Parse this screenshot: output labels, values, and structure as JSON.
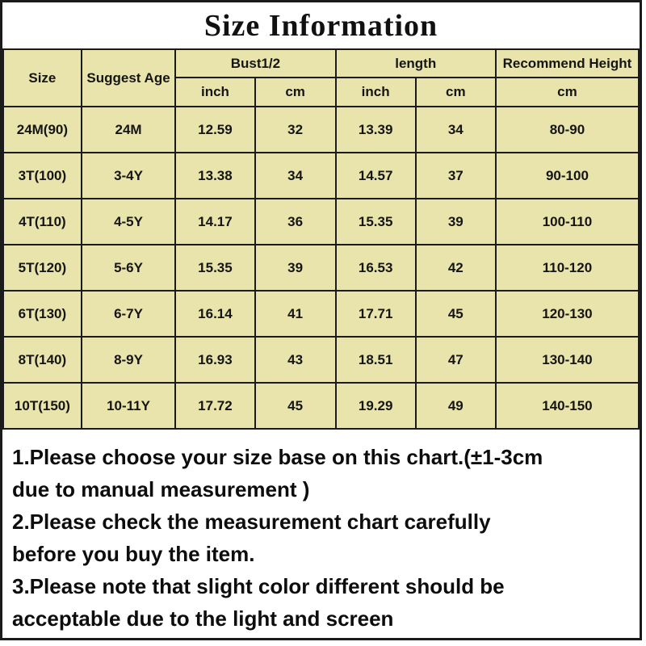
{
  "title": "Size Information",
  "colors": {
    "cell_bg": "#e9e4ab",
    "border": "#1b1b1b",
    "background": "#ffffff",
    "text": "#161616"
  },
  "table": {
    "columns": [
      {
        "label": "Size"
      },
      {
        "label": "Suggest Age"
      },
      {
        "label": "Bust1/2",
        "sub": [
          "inch",
          "cm"
        ]
      },
      {
        "label": "length",
        "sub": [
          "inch",
          "cm"
        ]
      },
      {
        "label": "Recommend Height",
        "sub": [
          "cm"
        ]
      }
    ],
    "rows": [
      {
        "size": "24M(90)",
        "age": "24M",
        "bust_inch": "12.59",
        "bust_cm": "32",
        "length_inch": "13.39",
        "length_cm": "34",
        "height_cm": "80-90"
      },
      {
        "size": "3T(100)",
        "age": "3-4Y",
        "bust_inch": "13.38",
        "bust_cm": "34",
        "length_inch": "14.57",
        "length_cm": "37",
        "height_cm": "90-100"
      },
      {
        "size": "4T(110)",
        "age": "4-5Y",
        "bust_inch": "14.17",
        "bust_cm": "36",
        "length_inch": "15.35",
        "length_cm": "39",
        "height_cm": "100-110"
      },
      {
        "size": "5T(120)",
        "age": "5-6Y",
        "bust_inch": "15.35",
        "bust_cm": "39",
        "length_inch": "16.53",
        "length_cm": "42",
        "height_cm": "110-120"
      },
      {
        "size": "6T(130)",
        "age": "6-7Y",
        "bust_inch": "16.14",
        "bust_cm": "41",
        "length_inch": "17.71",
        "length_cm": "45",
        "height_cm": "120-130"
      },
      {
        "size": "8T(140)",
        "age": "8-9Y",
        "bust_inch": "16.93",
        "bust_cm": "43",
        "length_inch": "18.51",
        "length_cm": "47",
        "height_cm": "130-140"
      },
      {
        "size": "10T(150)",
        "age": "10-11Y",
        "bust_inch": "17.72",
        "bust_cm": "45",
        "length_inch": "19.29",
        "length_cm": "49",
        "height_cm": "140-150"
      }
    ]
  },
  "notes": [
    {
      "lines": [
        "1.Please choose your size base on this chart.(±1-3cm",
        "due to manual measurement )"
      ]
    },
    {
      "lines": [
        "2.Please check the measurement chart carefully",
        "before you buy the item."
      ]
    },
    {
      "lines": [
        "3.Please note that slight color different should be",
        "acceptable due to the light and screen"
      ]
    }
  ]
}
